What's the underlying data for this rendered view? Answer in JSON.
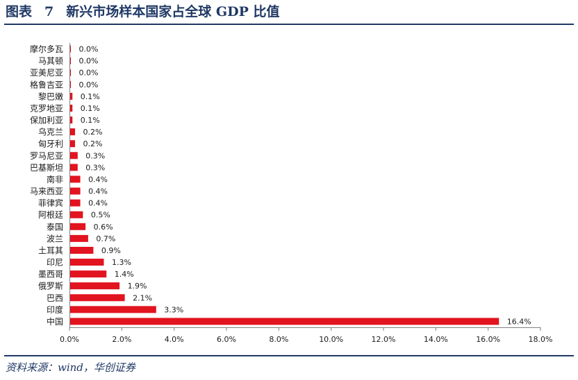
{
  "header": {
    "figure_label": "图表",
    "figure_number": "7",
    "title": "新兴市场样本国家占全球 GDP 比值"
  },
  "footer": {
    "source": "资料来源：wind，华创证券"
  },
  "colors": {
    "bar": "#e1141f",
    "accent": "#1f3864",
    "axis": "#7f7f7f"
  },
  "chart_data": {
    "type": "bar",
    "orientation": "horizontal",
    "title": "新兴市场样本国家占全球 GDP 比值",
    "xlabel": "",
    "ylabel": "",
    "xlim": [
      0,
      18
    ],
    "grid": false,
    "legend": "none",
    "categories": [
      "摩尔多瓦",
      "马其顿",
      "亚美尼亚",
      "格鲁吉亚",
      "黎巴嫩",
      "克罗地亚",
      "保加利亚",
      "乌克兰",
      "匈牙利",
      "罗马尼亚",
      "巴基斯坦",
      "南非",
      "马来西亚",
      "菲律宾",
      "阿根廷",
      "泰国",
      "波兰",
      "土耳其",
      "印尼",
      "墨西哥",
      "俄罗斯",
      "巴西",
      "印度",
      "中国"
    ],
    "values": [
      0.01,
      0.01,
      0.01,
      0.02,
      0.1,
      0.1,
      0.1,
      0.2,
      0.2,
      0.3,
      0.3,
      0.4,
      0.4,
      0.4,
      0.5,
      0.6,
      0.7,
      0.9,
      1.3,
      1.4,
      1.9,
      2.1,
      3.3,
      16.4
    ],
    "value_labels": [
      "0.0%",
      "0.0%",
      "0.0%",
      "0.0%",
      "0.1%",
      "0.1%",
      "0.1%",
      "0.2%",
      "0.2%",
      "0.3%",
      "0.3%",
      "0.4%",
      "0.4%",
      "0.4%",
      "0.5%",
      "0.6%",
      "0.7%",
      "0.9%",
      "1.3%",
      "1.4%",
      "1.9%",
      "2.1%",
      "3.3%",
      "16.4%"
    ],
    "x_ticks": [
      0,
      2,
      4,
      6,
      8,
      10,
      12,
      14,
      16,
      18
    ],
    "x_tick_labels": [
      "0.0%",
      "2.0%",
      "4.0%",
      "6.0%",
      "8.0%",
      "10.0%",
      "12.0%",
      "14.0%",
      "16.0%",
      "18.0%"
    ]
  }
}
